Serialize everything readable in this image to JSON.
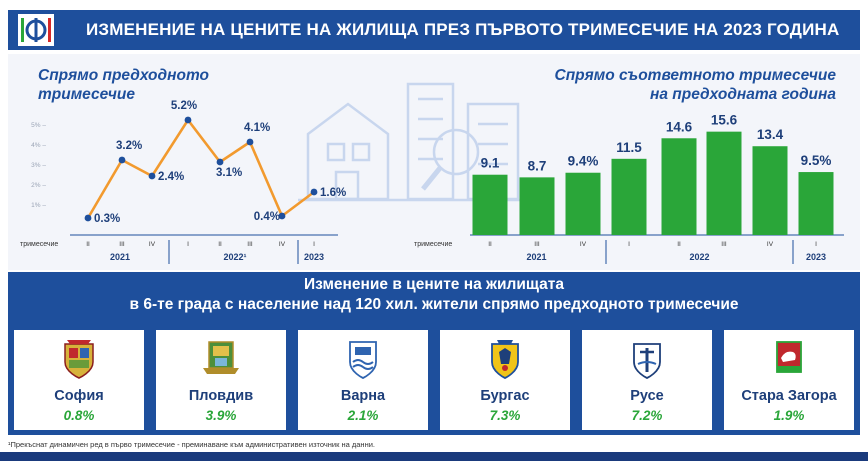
{
  "header": {
    "title": "ИЗМЕНЕНИЕ НА ЦЕНИТЕ НА ЖИЛИЩА ПРЕЗ ПЪРВОТО ТРИМЕСЕЧИЕ НА 2023 ГОДИНА"
  },
  "colors": {
    "brand_blue": "#1e4f9c",
    "line_orange": "#f29a2e",
    "bar_green": "#2aa639",
    "value_green": "#2aa639"
  },
  "chart_data": [
    {
      "type": "line",
      "title_line1": "Спрямо предходното",
      "title_line2": "тримесечие",
      "row_label": "тримесечие",
      "categories": [
        "II",
        "III",
        "IV",
        "I",
        "II",
        "III",
        "IV",
        "I"
      ],
      "years": [
        {
          "label": "2021",
          "start": 0,
          "end": 2
        },
        {
          "label": "2022¹",
          "start": 3,
          "end": 6
        },
        {
          "label": "2023",
          "start": 7,
          "end": 7
        }
      ],
      "values": [
        0.3,
        3.2,
        2.4,
        5.2,
        3.1,
        4.1,
        0.4,
        1.6
      ],
      "value_labels": [
        "0.3%",
        "3.2%",
        "2.4%",
        "5.2%",
        "3.1%",
        "4.1%",
        "0.4%",
        "1.6%"
      ],
      "ylim": [
        0,
        6
      ],
      "y_ticks": [
        1,
        2,
        3,
        4,
        5
      ],
      "y_tick_labels": [
        "1% –",
        "2% –",
        "3% –",
        "4% –",
        "5% –"
      ]
    },
    {
      "type": "bar",
      "title_line1": "Спрямо съответното тримесечие",
      "title_line2": "на предходната година",
      "row_label": "тримесечие",
      "categories": [
        "II",
        "III",
        "IV",
        "I",
        "II",
        "III",
        "IV",
        "I"
      ],
      "years": [
        {
          "label": "2021",
          "start": 0,
          "end": 2
        },
        {
          "label": "2022",
          "start": 3,
          "end": 6
        },
        {
          "label": "2023",
          "start": 7,
          "end": 7
        }
      ],
      "values": [
        9.1,
        8.7,
        9.4,
        11.5,
        14.6,
        15.6,
        13.4,
        9.5
      ],
      "value_labels": [
        "9.1",
        "8.7",
        "9.4%",
        "11.5",
        "14.6",
        "15.6",
        "13.4",
        "9.5%"
      ],
      "ylim": [
        0,
        16
      ]
    }
  ],
  "cities": {
    "title_line1": "Изменение в цените на жилищата",
    "title_line2": "в 6-те града с население над 120 хил. жители спрямо предходното тримесечие",
    "items": [
      {
        "name": "София",
        "value": "0.8%"
      },
      {
        "name": "Пловдив",
        "value": "3.9%"
      },
      {
        "name": "Варна",
        "value": "2.1%"
      },
      {
        "name": "Бургас",
        "value": "7.3%"
      },
      {
        "name": "Русе",
        "value": "7.2%"
      },
      {
        "name": "Стара Загора",
        "value": "1.9%"
      }
    ]
  },
  "footnote": "¹Прекъснат динамичен ред в първо тримесечие - преминаване към административен източник на данни."
}
